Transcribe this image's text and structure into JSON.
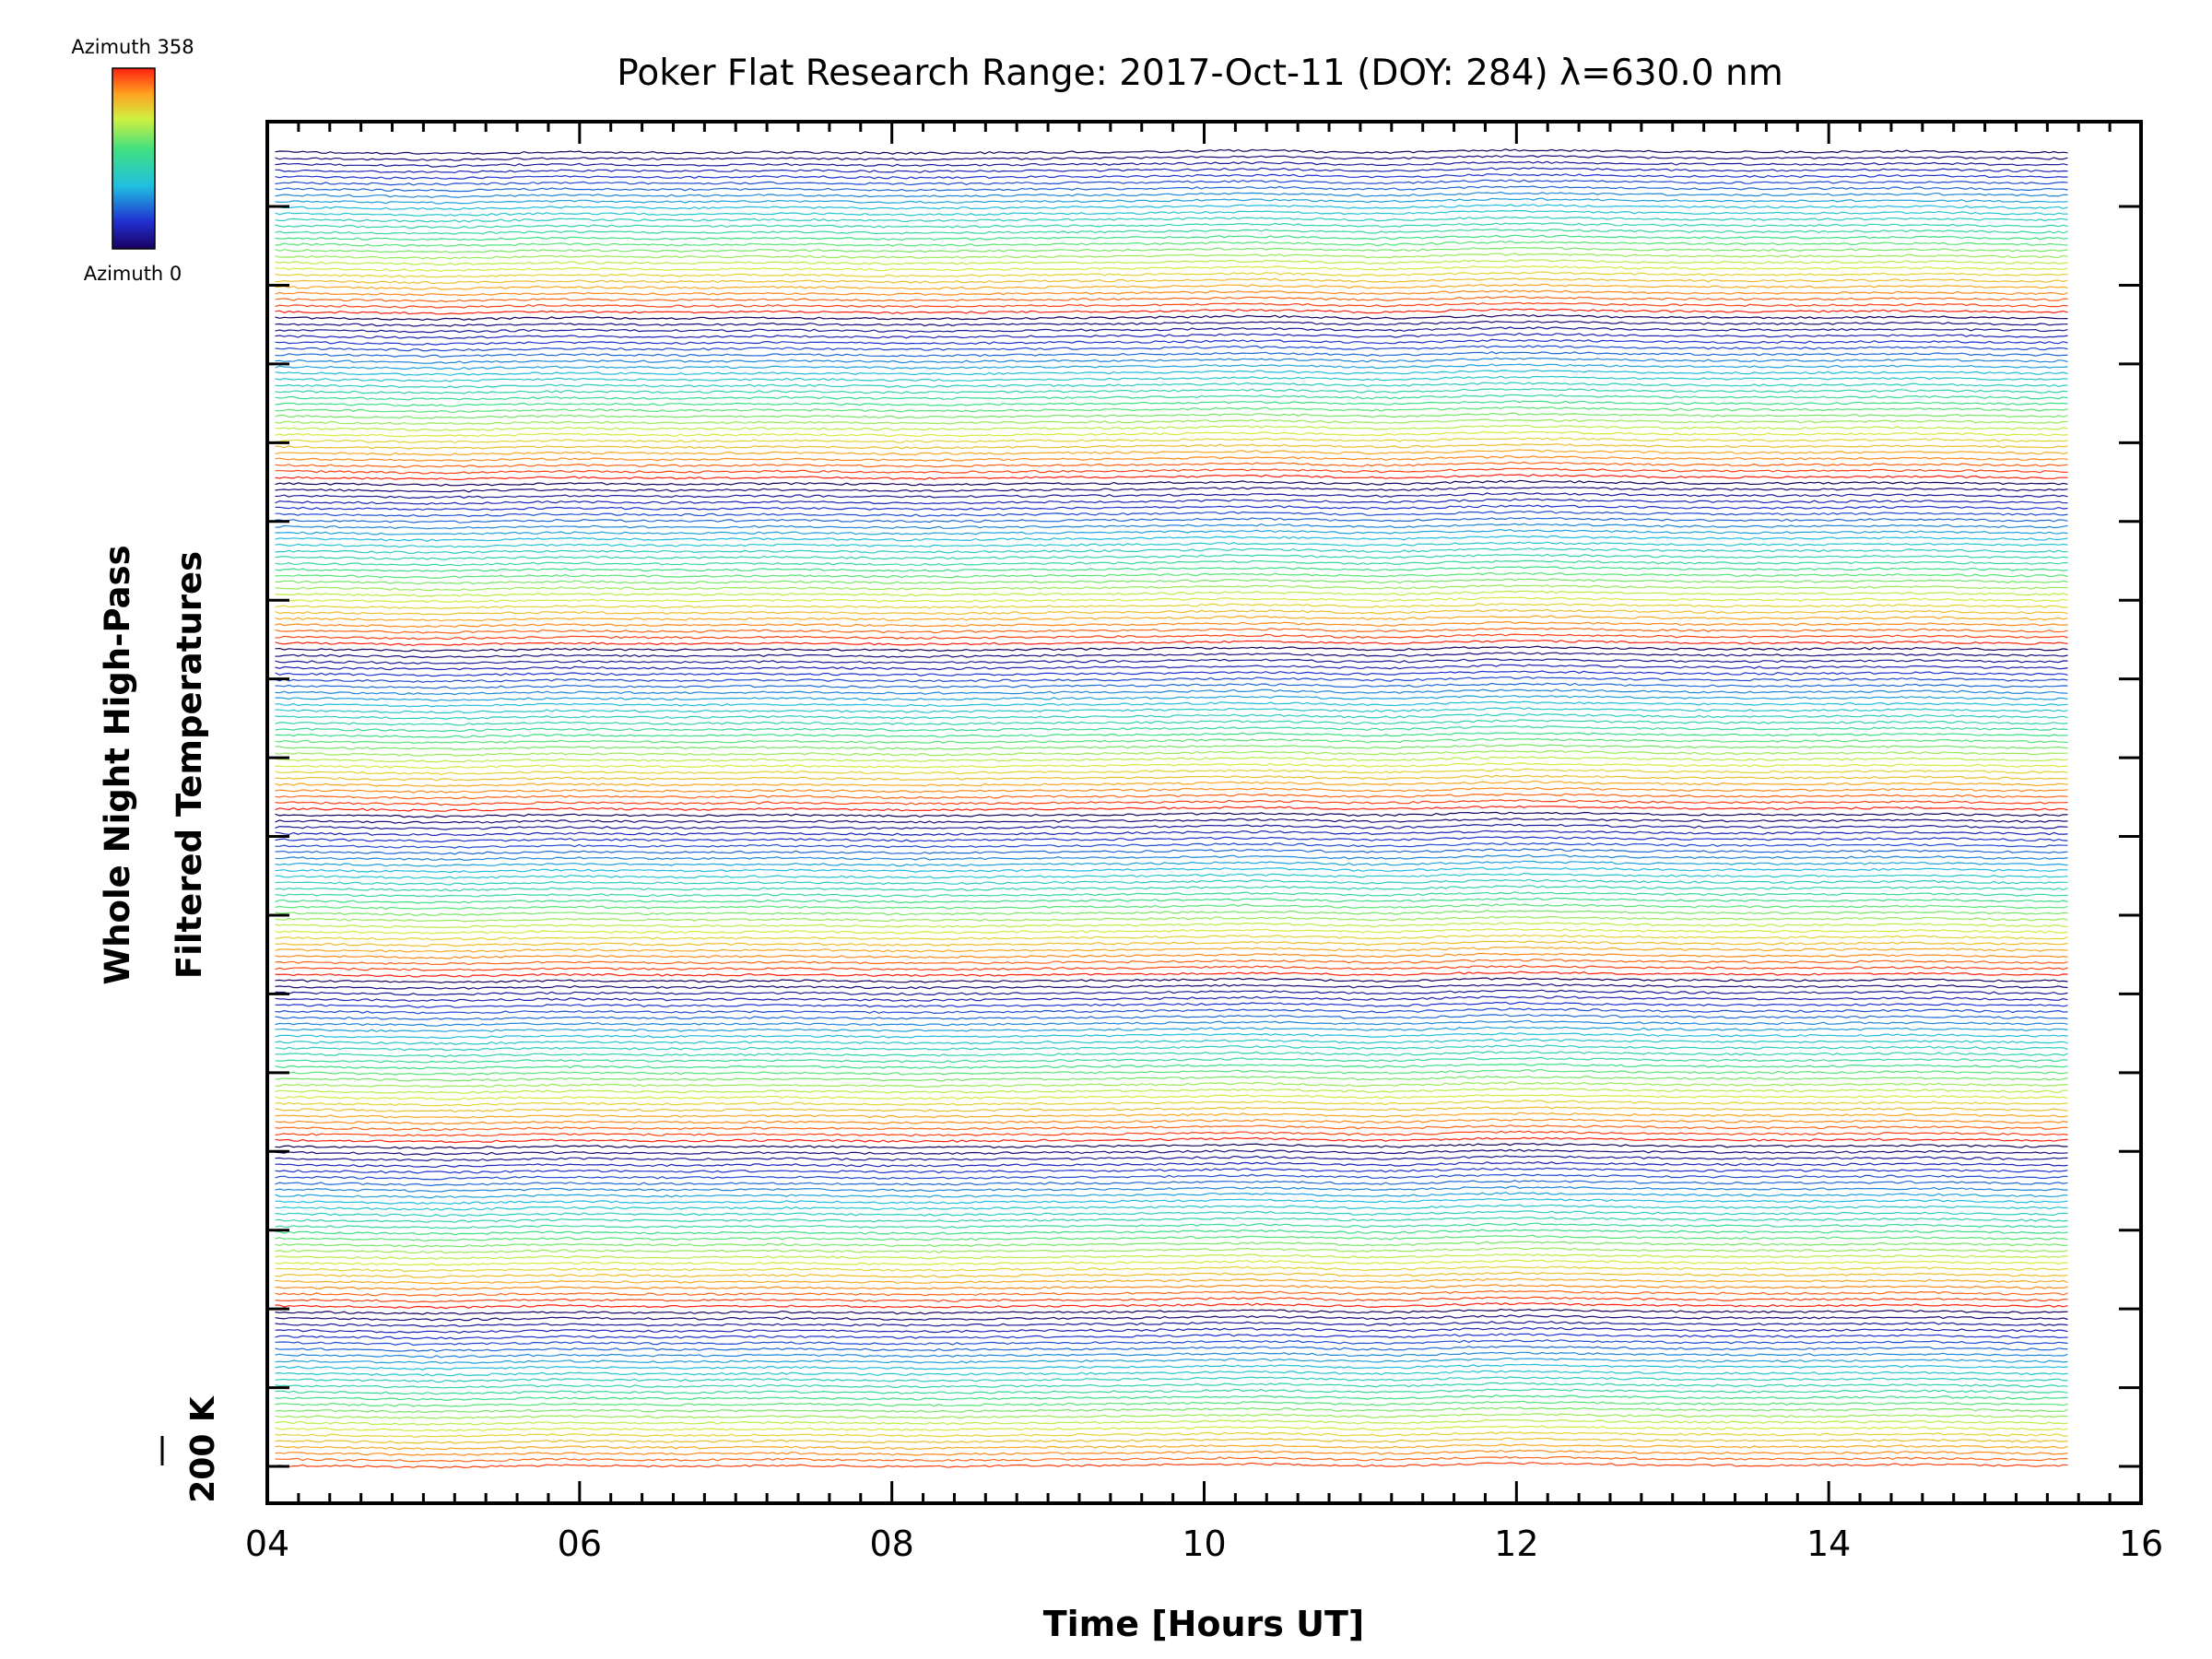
{
  "chart_data": {
    "type": "line",
    "title": "Poker Flat Research Range: 2017-Oct-11 (DOY: 284) λ=630.0 nm",
    "xlabel": "Time [Hours UT]",
    "ylabel_line1": "Whole Night High-Pass",
    "ylabel_line2": "Filtered Temperatures",
    "scale_label": "200 K",
    "xlim": [
      4,
      16
    ],
    "x_ticks": [
      4,
      6,
      8,
      10,
      12,
      14,
      16
    ],
    "x_tick_labels": [
      "04",
      "06",
      "08",
      "10",
      "12",
      "14",
      "16"
    ],
    "y_major_ticks": 16,
    "series_count": 215,
    "time_start": 4.05,
    "time_end": 15.55,
    "stack": "vertical stacked traces, one per azimuth, color = azimuth",
    "colorbar": {
      "label_max": "Azimuth 358",
      "label_min": "Azimuth 0",
      "colormap": "rainbow (black/blue to red)"
    },
    "grid": false,
    "legend": "colorbar top-left"
  }
}
